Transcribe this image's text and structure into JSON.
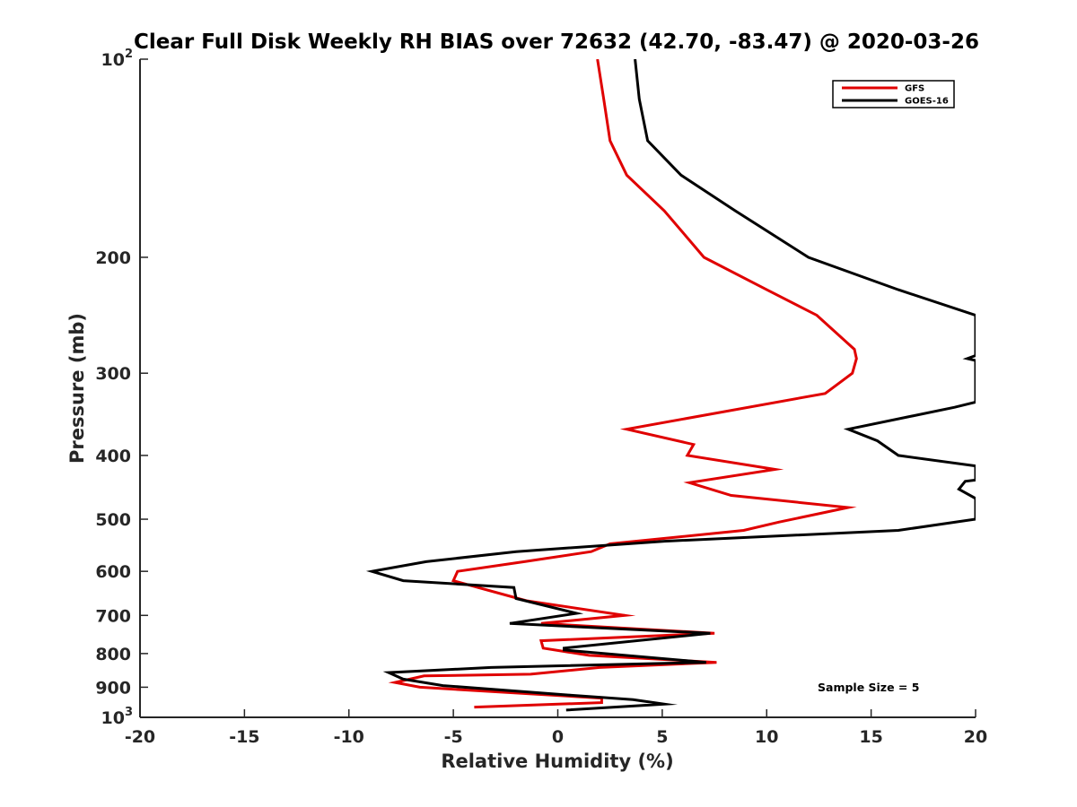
{
  "chart_data": {
    "type": "line",
    "title": "Clear Full Disk Weekly RH BIAS over 72632 (42.70, -83.47) @ 2020-03-26",
    "xlabel": "Relative Humidity (%)",
    "ylabel": "Pressure (mb)",
    "xlim": [
      -20,
      20
    ],
    "ylim": [
      100,
      1000
    ],
    "yscale": "log",
    "y_reversed": true,
    "grid": false,
    "legend_position": "top-right",
    "x_ticks": [
      "-20",
      "-15",
      "-10",
      "-5",
      "0",
      "5",
      "10",
      "15",
      "20"
    ],
    "y_ticks": [
      {
        "value": 100,
        "label": "10",
        "sup": "2"
      },
      {
        "value": 200,
        "label": "200",
        "sup": ""
      },
      {
        "value": 300,
        "label": "300",
        "sup": ""
      },
      {
        "value": 400,
        "label": "400",
        "sup": ""
      },
      {
        "value": 500,
        "label": "500",
        "sup": ""
      },
      {
        "value": 600,
        "label": "600",
        "sup": ""
      },
      {
        "value": 700,
        "label": "700",
        "sup": ""
      },
      {
        "value": 800,
        "label": "800",
        "sup": ""
      },
      {
        "value": 900,
        "label": "900",
        "sup": ""
      },
      {
        "value": 1000,
        "label": "10",
        "sup": "3"
      }
    ],
    "series": [
      {
        "name": "GFS",
        "color": "#e00000",
        "points": [
          [
            1.9,
            100
          ],
          [
            2.2,
            115
          ],
          [
            2.5,
            133
          ],
          [
            3.3,
            150
          ],
          [
            5.1,
            170
          ],
          [
            7.0,
            200
          ],
          [
            10.0,
            224
          ],
          [
            12.4,
            245
          ],
          [
            14.2,
            276
          ],
          [
            14.3,
            285
          ],
          [
            14.1,
            300
          ],
          [
            13.5,
            310
          ],
          [
            12.8,
            322
          ],
          [
            3.3,
            365
          ],
          [
            6.5,
            385
          ],
          [
            6.2,
            400
          ],
          [
            10.4,
            420
          ],
          [
            6.3,
            440
          ],
          [
            8.3,
            460
          ],
          [
            13.9,
            480
          ],
          [
            10.6,
            505
          ],
          [
            8.9,
            520
          ],
          [
            2.5,
            545
          ],
          [
            1.6,
            560
          ],
          [
            -1.6,
            580
          ],
          [
            -4.8,
            600
          ],
          [
            -5.0,
            620
          ],
          [
            -1.5,
            665
          ],
          [
            3.2,
            700
          ],
          [
            -0.8,
            720
          ],
          [
            7.5,
            745
          ],
          [
            -0.8,
            765
          ],
          [
            -0.7,
            785
          ],
          [
            1.5,
            805
          ],
          [
            7.6,
            825
          ],
          [
            2.0,
            840
          ],
          [
            -1.3,
            860
          ],
          [
            -6.4,
            865
          ],
          [
            -7.8,
            885
          ],
          [
            -6.6,
            900
          ],
          [
            2.1,
            935
          ],
          [
            2.1,
            950
          ],
          [
            -4.0,
            965
          ]
        ]
      },
      {
        "name": "GOES-16",
        "color": "#000000",
        "points": [
          [
            3.7,
            100
          ],
          [
            3.9,
            115
          ],
          [
            4.3,
            133
          ],
          [
            5.9,
            150
          ],
          [
            8.5,
            170
          ],
          [
            12.0,
            200
          ],
          [
            16.3,
            224
          ],
          [
            20.0,
            245
          ],
          [
            20.0,
            282
          ],
          [
            19.6,
            285
          ],
          [
            20.0,
            287
          ],
          [
            20.0,
            332
          ],
          [
            19.0,
            338
          ],
          [
            13.9,
            365
          ],
          [
            15.3,
            380
          ],
          [
            16.3,
            400
          ],
          [
            20.0,
            415
          ],
          [
            20.0,
            436
          ],
          [
            19.5,
            438
          ],
          [
            19.2,
            450
          ],
          [
            20.0,
            465
          ],
          [
            20.0,
            500
          ],
          [
            16.3,
            520
          ],
          [
            5.1,
            540
          ],
          [
            -2.0,
            560
          ],
          [
            -6.3,
            580
          ],
          [
            -8.9,
            600
          ],
          [
            -7.4,
            620
          ],
          [
            -2.1,
            635
          ],
          [
            -2.0,
            660
          ],
          [
            0.9,
            695
          ],
          [
            -2.3,
            720
          ],
          [
            7.3,
            745
          ],
          [
            0.3,
            785
          ],
          [
            0.3,
            790
          ],
          [
            7.1,
            825
          ],
          [
            -3.2,
            840
          ],
          [
            -8.1,
            855
          ],
          [
            -7.4,
            875
          ],
          [
            -5.5,
            895
          ],
          [
            0.5,
            925
          ],
          [
            3.6,
            940
          ],
          [
            5.1,
            955
          ],
          [
            0.4,
            975
          ]
        ]
      }
    ],
    "annotations": [
      "Sample Size = 5"
    ]
  }
}
